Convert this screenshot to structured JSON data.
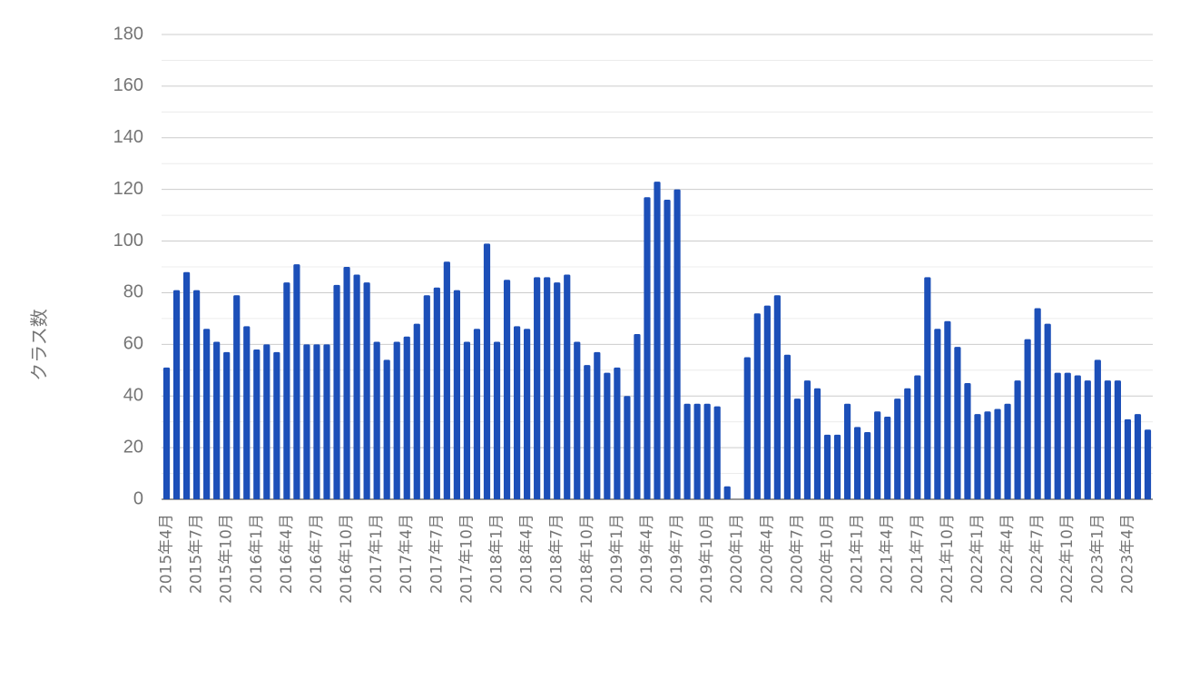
{
  "chart_data": {
    "type": "bar",
    "y_label": "クラス数",
    "color": "#1c4fb8",
    "grid": true,
    "categories": [
      "2015年4月",
      null,
      null,
      "2015年7月",
      null,
      null,
      "2015年10月",
      null,
      null,
      "2016年1月",
      null,
      null,
      "2016年4月",
      null,
      null,
      "2016年7月",
      null,
      null,
      "2016年10月",
      null,
      null,
      "2017年1月",
      null,
      null,
      "2017年4月",
      null,
      null,
      "2017年7月",
      null,
      null,
      "2017年10月",
      null,
      null,
      "2018年1月",
      null,
      null,
      "2018年4月",
      null,
      null,
      "2018年7月",
      null,
      null,
      "2018年10月",
      null,
      null,
      "2019年1月",
      null,
      null,
      "2019年4月",
      null,
      null,
      "2019年7月",
      null,
      null,
      "2019年10月",
      null,
      null,
      "2020年1月",
      null,
      null,
      "2020年4月",
      null,
      null,
      "2020年7月",
      null,
      null,
      "2020年10月",
      null,
      null,
      "2021年1月",
      null,
      null,
      "2021年4月",
      null,
      null,
      "2021年7月",
      null,
      null,
      "2021年10月",
      null,
      null,
      "2022年1月",
      null,
      null,
      "2022年4月",
      null,
      null,
      "2022年7月",
      null,
      null,
      "2022年10月",
      null,
      null,
      "2023年1月",
      null,
      null,
      "2023年4月",
      null,
      null
    ],
    "values": [
      51,
      81,
      88,
      81,
      66,
      61,
      57,
      79,
      67,
      58,
      60,
      57,
      84,
      91,
      60,
      60,
      60,
      83,
      90,
      87,
      84,
      61,
      54,
      61,
      63,
      68,
      79,
      82,
      92,
      81,
      61,
      66,
      99,
      61,
      85,
      67,
      66,
      86,
      86,
      84,
      87,
      61,
      52,
      57,
      49,
      51,
      40,
      64,
      117,
      123,
      116,
      120,
      37,
      37,
      37,
      36,
      5,
      0,
      55,
      72,
      75,
      79,
      56,
      39,
      46,
      43,
      25,
      25,
      37,
      28,
      26,
      34,
      32,
      39,
      43,
      48,
      86,
      66,
      69,
      59,
      45,
      33,
      34,
      35,
      37,
      46,
      62,
      74,
      68,
      49,
      49,
      48,
      46,
      54,
      46,
      46,
      31,
      33,
      27
    ],
    "ylim": [
      0,
      180
    ],
    "yticks": [
      0,
      20,
      40,
      60,
      80,
      100,
      120,
      140,
      160,
      180
    ]
  }
}
